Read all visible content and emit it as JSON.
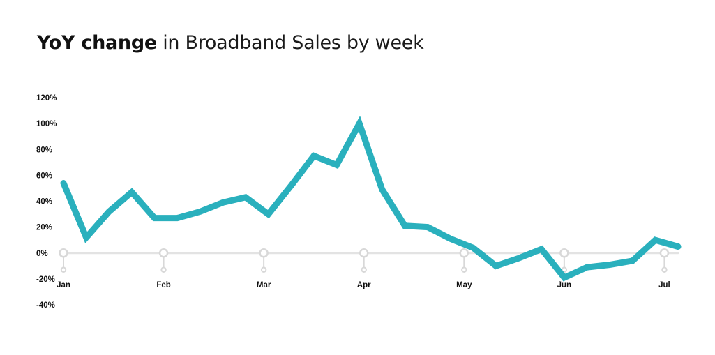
{
  "title_bold": "YoY change",
  "title_rest": "in Broadband Sales by week",
  "colors": {
    "line": "#2ab0bd",
    "zero_line": "#e3e3e3",
    "marker": "#d8d8d8"
  },
  "chart_data": {
    "type": "line",
    "title": "YoY change in Broadband Sales by week",
    "xlabel": "",
    "ylabel": "",
    "ylim": [
      -40,
      120
    ],
    "y_ticks": [
      120,
      100,
      80,
      60,
      40,
      20,
      0,
      -20,
      -40
    ],
    "y_tick_labels": [
      "120%",
      "100%",
      "80%",
      "60%",
      "40%",
      "20%",
      "0%",
      "-20%",
      "-40%"
    ],
    "x_ticks": [
      0,
      4.4,
      8.8,
      13.2,
      17.6,
      22,
      26.4
    ],
    "x_tick_labels": [
      "Jan",
      "Feb",
      "Mar",
      "Apr",
      "May",
      "Jun",
      "Jul"
    ],
    "grid": false,
    "series": [
      {
        "x": [
          0,
          1,
          2,
          3,
          4,
          5,
          6,
          7,
          8,
          9,
          10,
          11,
          12,
          13,
          14,
          15,
          16,
          17,
          18,
          19,
          20,
          21,
          22,
          23,
          24,
          25,
          26,
          27
        ],
        "values": [
          54,
          12,
          32,
          47,
          27,
          27,
          32,
          39,
          43,
          30,
          52,
          75,
          68,
          100,
          49,
          21,
          20,
          11,
          4,
          -10,
          -4,
          3,
          -19,
          -11,
          -9,
          -6,
          10,
          5
        ]
      }
    ]
  }
}
